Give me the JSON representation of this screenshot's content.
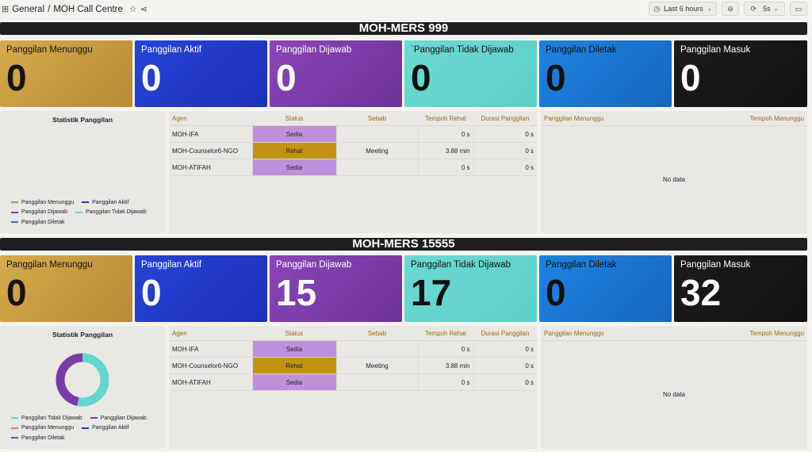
{
  "header": {
    "breadcrumb_root": "General",
    "breadcrumb_sep": "/",
    "title": "MOH Call Centre",
    "time_range": "Last 6 hours",
    "refresh_interval": "5s"
  },
  "colors": {
    "menunggu": "#b9913d",
    "aktif": "#1f35c8",
    "dijawab": "#7a3ca8",
    "tidak": "#65d6cf",
    "diletak": "#1a74cf",
    "masuk": "#151515",
    "rehat": "#c1930f",
    "sedia": "#c08fdc"
  },
  "sections": [
    {
      "name": "MOH-MERS 999",
      "stats": [
        {
          "label": "Panggilan Menunggu",
          "value": "0"
        },
        {
          "label": "Panggilan Aktif",
          "value": "0"
        },
        {
          "label": "Panggilan Dijawab",
          "value": "0"
        },
        {
          "label": "`Panggilan Tidak Dijawab",
          "value": "0"
        },
        {
          "label": "Panggilan Diletak",
          "value": "0"
        },
        {
          "label": "Panggilan Masuk",
          "value": "0"
        }
      ],
      "chart_title": "Statistik Panggilan",
      "legend": [
        "Panggilan Menunggu",
        "Panggilan Aktif",
        "Panggilan Dijawab",
        "Panggilan Tidak Dijawab",
        "Panggilan Diletak"
      ],
      "table": {
        "columns": [
          "Agen",
          "Status",
          "Sebab",
          "Tempoh Rehat",
          "Durasi Panggilan"
        ],
        "rows": [
          [
            "MOH-IFA",
            "Sedia",
            "",
            "0 s",
            "0 s"
          ],
          [
            "MOH-Counselor6-NGO",
            "Rehat",
            "Meeting",
            "3.88 min",
            "0 s"
          ],
          [
            "MOH-ATIFAH",
            "Sedia",
            "",
            "0 s",
            "0 s"
          ]
        ]
      },
      "queue": {
        "columns": [
          "Panggilan Menunggu",
          "Tempoh Menunggu"
        ],
        "empty": "No data"
      }
    },
    {
      "name": "MOH-MERS 15555",
      "stats": [
        {
          "label": "Panggilan Menunggu",
          "value": "0"
        },
        {
          "label": "Panggilan Aktif",
          "value": "0"
        },
        {
          "label": "Panggilan Dijawab",
          "value": "15"
        },
        {
          "label": "Panggilan Tidak Dijawab",
          "value": "17"
        },
        {
          "label": "Panggilan Diletak",
          "value": "0"
        },
        {
          "label": "Panggilan Masuk",
          "value": "32"
        }
      ],
      "chart_title": "Statistik Panggilan",
      "legend": [
        "Panggilan Tidak Dijawab",
        "Panggilan Dijawab",
        "Panggilan Menunggu",
        "Panggilan Aktif",
        "Panggilan Diletak"
      ],
      "table": {
        "columns": [
          "Agen",
          "Status",
          "Sebab",
          "Tempoh Rehat",
          "Durasi Panggilan"
        ],
        "rows": [
          [
            "MOH-IFA",
            "Sedia",
            "",
            "0 s",
            "0 s"
          ],
          [
            "MOH-Counselor6-NGO",
            "Rehat",
            "Meeting",
            "3.88 min",
            "0 s"
          ],
          [
            "MOH-ATIFAH",
            "Sedia",
            "",
            "0 s",
            "0 s"
          ]
        ]
      },
      "queue": {
        "columns": [
          "Panggilan Menunggu",
          "Tempoh Menunggu"
        ],
        "empty": "No data"
      }
    }
  ],
  "chart_data": {
    "type": "pie",
    "title": "Statistik Panggilan",
    "categories": [
      "Panggilan Tidak Dijawab",
      "Panggilan Dijawab"
    ],
    "values": [
      17,
      15
    ]
  }
}
